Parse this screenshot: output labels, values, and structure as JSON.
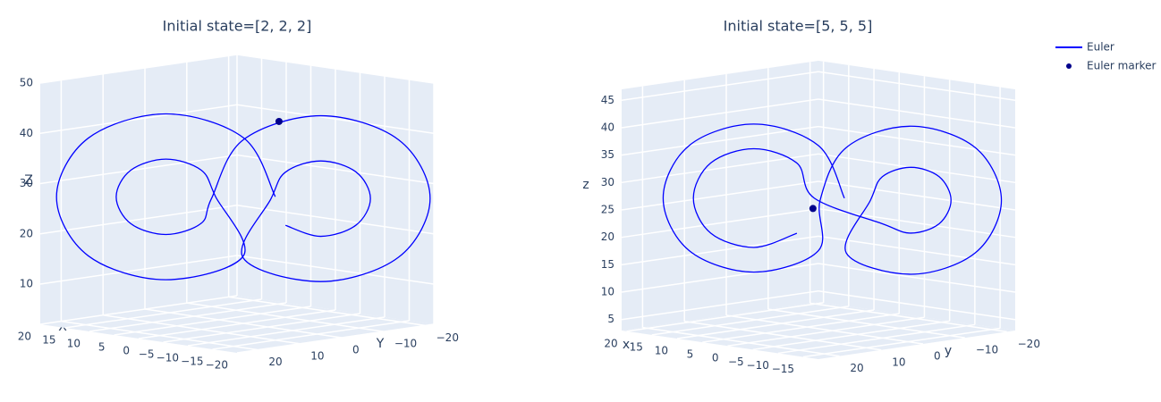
{
  "chart_data": [
    {
      "type": "line3d",
      "title": "Initial state=[2, 2, 2]",
      "xlabel": "X",
      "ylabel": "Y",
      "zlabel": "Z",
      "xlim": [
        -20,
        20
      ],
      "ylim": [
        -22,
        25
      ],
      "zlim": [
        2,
        50
      ],
      "xticks": [
        20,
        15,
        10,
        5,
        0,
        {
          "value": -5,
          "label": "−5"
        },
        {
          "value": -10,
          "label": "−10"
        },
        {
          "value": -15,
          "label": "−15"
        },
        {
          "value": -20,
          "label": "−20"
        }
      ],
      "yticks": [
        {
          "value": -20,
          "label": "−20"
        },
        {
          "value": -10,
          "label": "−10"
        },
        0,
        10,
        20
      ],
      "zticks": [
        10,
        20,
        30,
        40,
        50
      ],
      "series": [
        {
          "mode": "lines",
          "color": "#0000ff",
          "x": [
            -2.5,
            0.7,
            8.5,
            16.3,
            19.5,
            16.3,
            8.5,
            0.7,
            3.5,
            5,
            8.5,
            12,
            13.5,
            12,
            8.5,
            5,
            2.5,
            -0.7,
            -8.5,
            -16.3,
            -19.5,
            -16.3,
            -8.5,
            -0.7,
            -3.5,
            -5,
            -8.5,
            -12,
            -13.5,
            -12,
            -8.5,
            -5
          ],
          "y": [
            -4.7,
            -0.9,
            8.5,
            17.9,
            21.7,
            17.9,
            8.5,
            -0.9,
            2.5,
            4.2,
            8.5,
            12.8,
            14.5,
            12.8,
            8.5,
            4.2,
            4.7,
            0.9,
            -8.5,
            -17.9,
            -21.7,
            -17.9,
            -8.5,
            0.9,
            -2.5,
            -4.2,
            -8.5,
            -12.8,
            -14.5,
            -12.8,
            -8.5,
            -4.2
          ],
          "z": [
            27,
            38.7,
            43.5,
            38.7,
            27,
            15.3,
            10.5,
            15.3,
            27,
            32.3,
            34.5,
            32.3,
            27,
            21.7,
            19.5,
            21.7,
            27,
            38.7,
            43.5,
            38.7,
            27,
            15.3,
            10.5,
            15.3,
            27,
            32.3,
            34.5,
            32.3,
            27,
            21.7,
            19.5,
            21.7
          ]
        },
        {
          "mode": "markers",
          "color": "#00008b",
          "x": [
            -3
          ],
          "y": [
            -5
          ],
          "z": [
            42
          ]
        }
      ]
    },
    {
      "type": "line3d",
      "title": "Initial state=[5, 5, 5]",
      "xlabel": "x",
      "ylabel": "y",
      "zlabel": "z",
      "xlim": [
        -18,
        21
      ],
      "ylim": [
        -22,
        25
      ],
      "zlim": [
        3,
        47
      ],
      "xticks": [
        20,
        15,
        10,
        5,
        0,
        {
          "value": -5,
          "label": "−5"
        },
        {
          "value": -10,
          "label": "−10"
        },
        {
          "value": -15,
          "label": "−15"
        }
      ],
      "yticks": [
        {
          "value": -20,
          "label": "−20"
        },
        {
          "value": -10,
          "label": "−10"
        },
        0,
        10,
        20
      ],
      "zticks": [
        5,
        10,
        15,
        20,
        25,
        30,
        35,
        40,
        45
      ],
      "series": [
        {
          "name": "Euler",
          "mode": "lines",
          "color": "#0000ff",
          "x": [
            -0.5,
            2.1,
            8.5,
            14.9,
            17.5,
            14.9,
            8.5,
            2.1,
            0.5,
            -2.1,
            -8.5,
            -14.9,
            -17.5,
            -14.9,
            -8.5,
            -2.1,
            -4.5,
            -5.7,
            -8.5,
            -11.3,
            -12.5,
            -11.3,
            -8.5,
            -5.7,
            2.5,
            4.2,
            8.5,
            12.8,
            14.5,
            12.8,
            8.5,
            4.2
          ],
          "y": [
            -2.3,
            0.8,
            8.5,
            16.2,
            19.3,
            16.2,
            8.5,
            0.8,
            2.3,
            -0.8,
            -8.5,
            -16.2,
            -19.3,
            -16.2,
            -8.5,
            -0.8,
            -3.7,
            -5.1,
            -8.5,
            -11.9,
            -13.3,
            -11.9,
            -8.5,
            -5.1,
            1.3,
            3.4,
            8.5,
            13.6,
            15.7,
            13.6,
            8.5,
            3.4
          ],
          "z": [
            27,
            36.6,
            40.5,
            36.6,
            27,
            17.4,
            13.5,
            17.4,
            27,
            36.6,
            40.5,
            36.6,
            27,
            17.4,
            13.5,
            17.4,
            27,
            31.3,
            33,
            31.3,
            27,
            22.7,
            21,
            22.7,
            27,
            33.4,
            36,
            33.4,
            27,
            20.6,
            18,
            20.6
          ]
        },
        {
          "name": "Euler marker",
          "mode": "markers",
          "color": "#00008b",
          "x": [
            3
          ],
          "y": [
            1
          ],
          "z": [
            25
          ]
        }
      ]
    }
  ]
}
